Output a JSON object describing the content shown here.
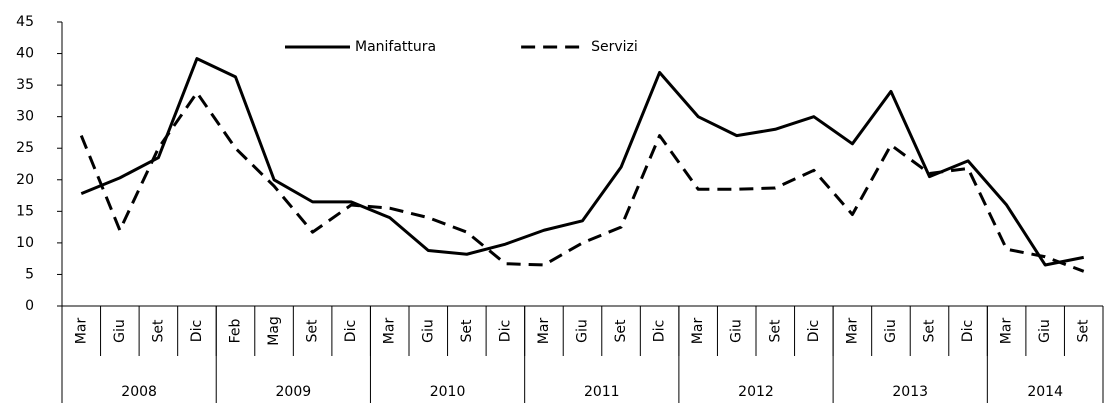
{
  "chart_data": {
    "type": "line",
    "groups": [
      {
        "name": "2008",
        "categories": [
          "Mar",
          "Giu",
          "Set",
          "Dic"
        ]
      },
      {
        "name": "2009",
        "categories": [
          "Feb",
          "Mag",
          "Set",
          "Dic"
        ]
      },
      {
        "name": "2010",
        "categories": [
          "Mar",
          "Giu",
          "Set",
          "Dic"
        ]
      },
      {
        "name": "2011",
        "categories": [
          "Mar",
          "Giu",
          "Set",
          "Dic"
        ]
      },
      {
        "name": "2012",
        "categories": [
          "Mar",
          "Giu",
          "Set",
          "Dic"
        ]
      },
      {
        "name": "2013",
        "categories": [
          "Mar",
          "Giu",
          "Set",
          "Dic"
        ]
      },
      {
        "name": "2014",
        "categories": [
          "Mar",
          "Giu",
          "Set"
        ]
      }
    ],
    "series": [
      {
        "name": "Manifattura",
        "color": "#000000",
        "dash": "solid",
        "values": [
          17.8,
          20.3,
          23.5,
          39.2,
          36.3,
          20,
          16.5,
          16.5,
          14,
          8.8,
          8.2,
          9.8,
          12,
          13.5,
          22,
          37,
          30,
          27,
          28,
          30,
          25.7,
          34,
          20.5,
          23,
          16,
          6.5,
          7.7
        ]
      },
      {
        "name": "Servizi",
        "color": "#000000",
        "dash": "dashed",
        "values": [
          27,
          12,
          25,
          33.8,
          25,
          19,
          11.7,
          16,
          15.5,
          14,
          11.7,
          6.7,
          6.5,
          10,
          12.5,
          27,
          18.5,
          18.5,
          18.7,
          21.5,
          14.5,
          25.5,
          21,
          21.8,
          9,
          7.8,
          5.5
        ]
      }
    ],
    "ylim": [
      0,
      45
    ],
    "yticks": [
      0,
      5,
      10,
      15,
      20,
      25,
      30,
      35,
      40,
      45
    ],
    "legend": "top",
    "grid": false
  }
}
